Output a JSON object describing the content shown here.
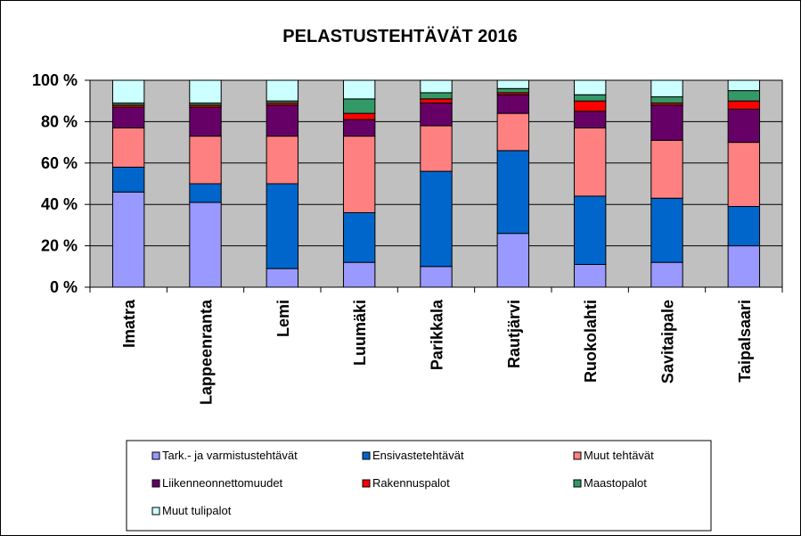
{
  "chart_data": {
    "type": "bar",
    "stacked": true,
    "title": "PELASTUSTEHTÄVÄT 2016",
    "xlabel": "",
    "ylabel": "",
    "ylim": [
      0,
      100
    ],
    "yticks": [
      "0 %",
      "20 %",
      "40 %",
      "60 %",
      "80 %",
      "100 %"
    ],
    "plot_background": "#c0c0c0",
    "grid": true,
    "legend_position": "bottom",
    "categories": [
      "Imatra",
      "Lappeenranta",
      "Lemi",
      "Luumäki",
      "Parikkala",
      "Rautjärvi",
      "Ruokolahti",
      "Savitaipale",
      "Taipalsaari"
    ],
    "series": [
      {
        "name": "Tark.- ja varmistustehtävät",
        "color": "#9999ff",
        "values": [
          46,
          41,
          9,
          12,
          10,
          26,
          11,
          12,
          20
        ]
      },
      {
        "name": "Ensivastetehtävät",
        "color": "#0066cc",
        "values": [
          12,
          9,
          41,
          24,
          46,
          40,
          33,
          31,
          19
        ]
      },
      {
        "name": "Muut tehtävät",
        "color": "#ff8080",
        "values": [
          19,
          23,
          23,
          37,
          22,
          18,
          33,
          28,
          31
        ]
      },
      {
        "name": "Liikenneonnettomuudet",
        "color": "#660066",
        "values": [
          10,
          14,
          15,
          8,
          11,
          9,
          8,
          17,
          16
        ]
      },
      {
        "name": "Rakennuspalot",
        "color": "#ff0000",
        "values": [
          1,
          1,
          1,
          3,
          2,
          1,
          5,
          1,
          4
        ]
      },
      {
        "name": "Maastopalot",
        "color": "#339966",
        "values": [
          1,
          1,
          1,
          7,
          3,
          2,
          3,
          3,
          5
        ]
      },
      {
        "name": "Muut tulipalot",
        "color": "#ccffff",
        "values": [
          11,
          11,
          10,
          9,
          6,
          4,
          7,
          8,
          5
        ]
      }
    ]
  }
}
